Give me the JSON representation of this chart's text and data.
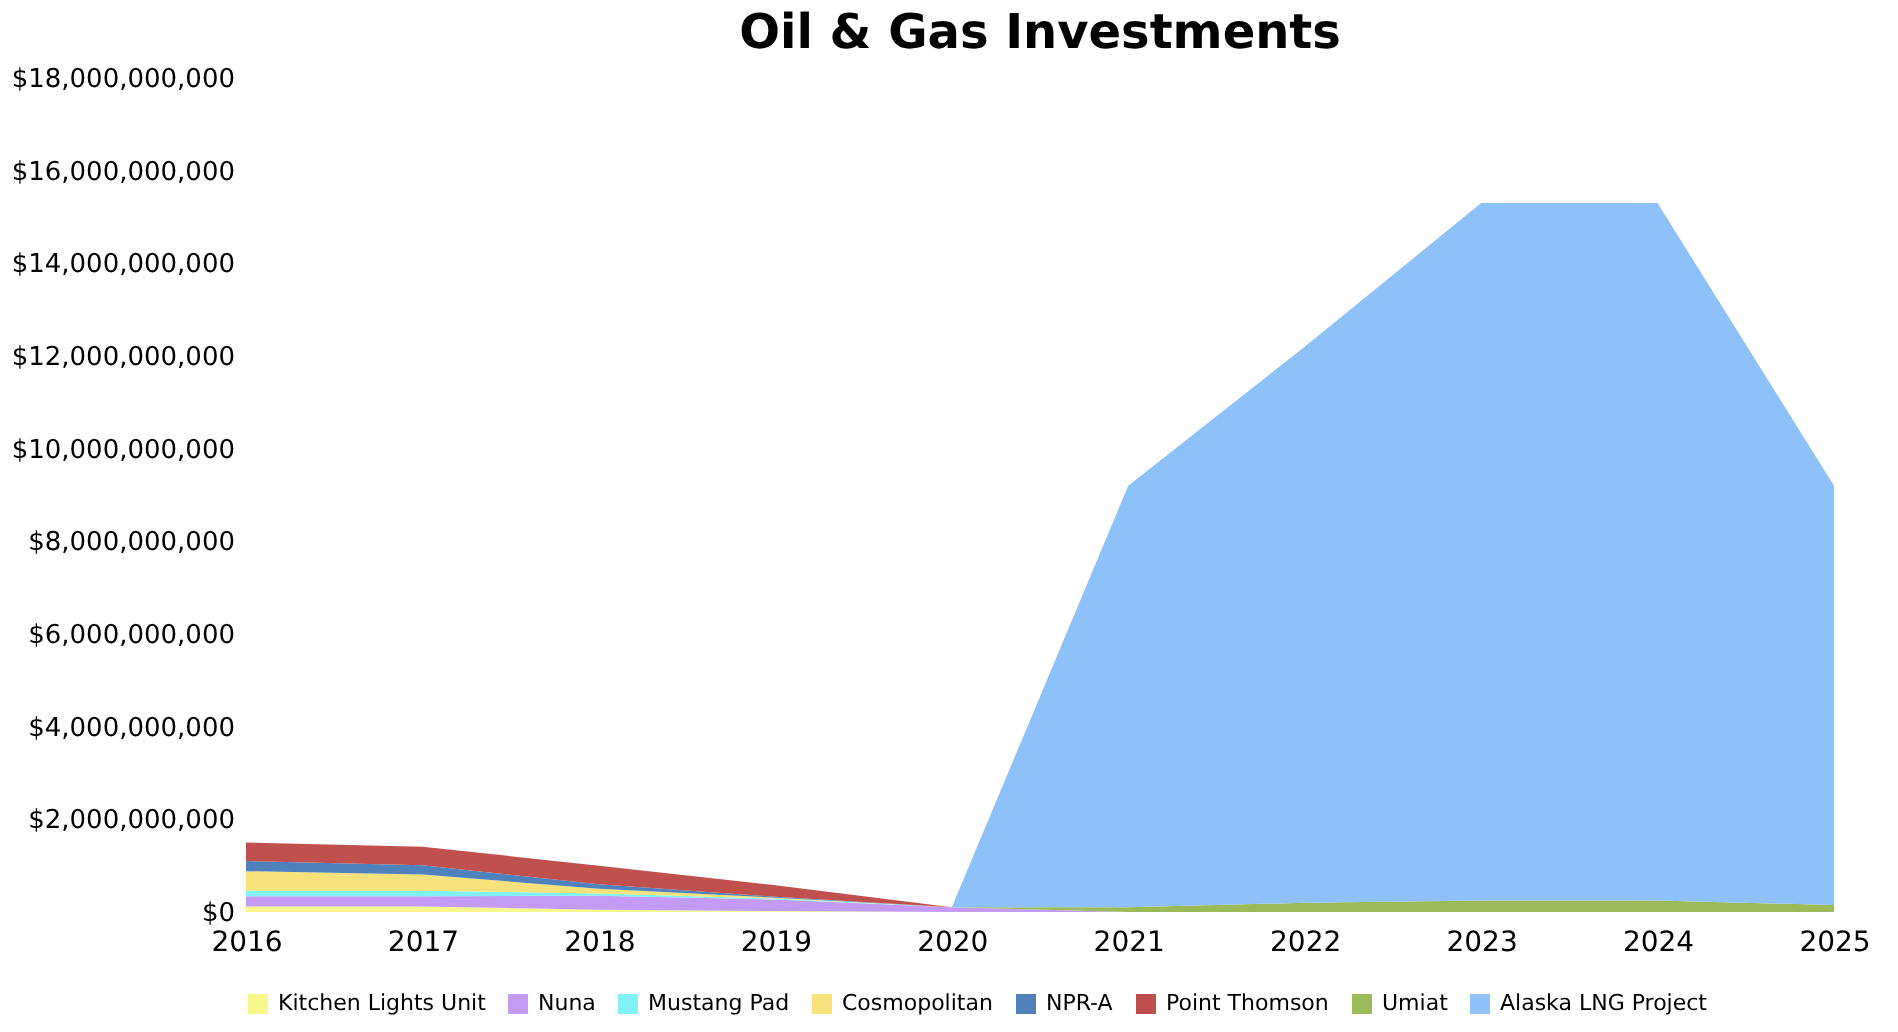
{
  "chart_data": {
    "type": "area",
    "title": "Oil & Gas Investments",
    "stacked": true,
    "legend": "bottom",
    "grid": false,
    "x": [
      2016,
      2017,
      2018,
      2019,
      2020,
      2021,
      2022,
      2023,
      2024,
      2025
    ],
    "xlim": [
      2016,
      2025
    ],
    "xticks": [
      2016,
      2017,
      2018,
      2019,
      2020,
      2021,
      2022,
      2023,
      2024,
      2025
    ],
    "ylim": [
      0,
      18000000000
    ],
    "yticks": [
      {
        "value": 0,
        "label": "$0"
      },
      {
        "value": 2000000000,
        "label": "$2,000,000,000"
      },
      {
        "value": 4000000000,
        "label": "$4,000,000,000"
      },
      {
        "value": 6000000000,
        "label": "$6,000,000,000"
      },
      {
        "value": 8000000000,
        "label": "$8,000,000,000"
      },
      {
        "value": 10000000000,
        "label": "$10,000,000,000"
      },
      {
        "value": 12000000000,
        "label": "$12,000,000,000"
      },
      {
        "value": 14000000000,
        "label": "$14,000,000,000"
      },
      {
        "value": 16000000000,
        "label": "$16,000,000,000"
      },
      {
        "value": 18000000000,
        "label": "$18,000,000,000"
      }
    ],
    "series": [
      {
        "name": "Kitchen Lights Unit",
        "color": "#f7f78c",
        "values": [
          120000000,
          120000000,
          50000000,
          20000000,
          0,
          0,
          0,
          0,
          0,
          0
        ]
      },
      {
        "name": "Nuna",
        "color": "#c39bf5",
        "values": [
          220000000,
          220000000,
          300000000,
          250000000,
          100000000,
          0,
          0,
          0,
          0,
          0
        ]
      },
      {
        "name": "Mustang Pad",
        "color": "#80f2f5",
        "values": [
          120000000,
          120000000,
          50000000,
          20000000,
          0,
          0,
          0,
          0,
          0,
          0
        ]
      },
      {
        "name": "Cosmopolitan",
        "color": "#f5e27a",
        "values": [
          420000000,
          350000000,
          100000000,
          20000000,
          0,
          0,
          0,
          0,
          0,
          0
        ]
      },
      {
        "name": "NPR-A",
        "color": "#4f81bd",
        "values": [
          220000000,
          200000000,
          100000000,
          20000000,
          0,
          0,
          0,
          0,
          0,
          0
        ]
      },
      {
        "name": "Point Thomson",
        "color": "#c0504d",
        "values": [
          400000000,
          400000000,
          400000000,
          250000000,
          0,
          0,
          0,
          0,
          0,
          0
        ]
      },
      {
        "name": "Umiat",
        "color": "#9bbb59",
        "values": [
          null,
          null,
          null,
          null,
          0,
          100000000,
          200000000,
          250000000,
          250000000,
          150000000
        ]
      },
      {
        "name": "Alaska LNG Project",
        "color": "#8ec1fa",
        "values": [
          null,
          null,
          null,
          null,
          0,
          9100000000,
          12000000000,
          15050000000,
          15050000000,
          9050000000
        ]
      }
    ]
  }
}
